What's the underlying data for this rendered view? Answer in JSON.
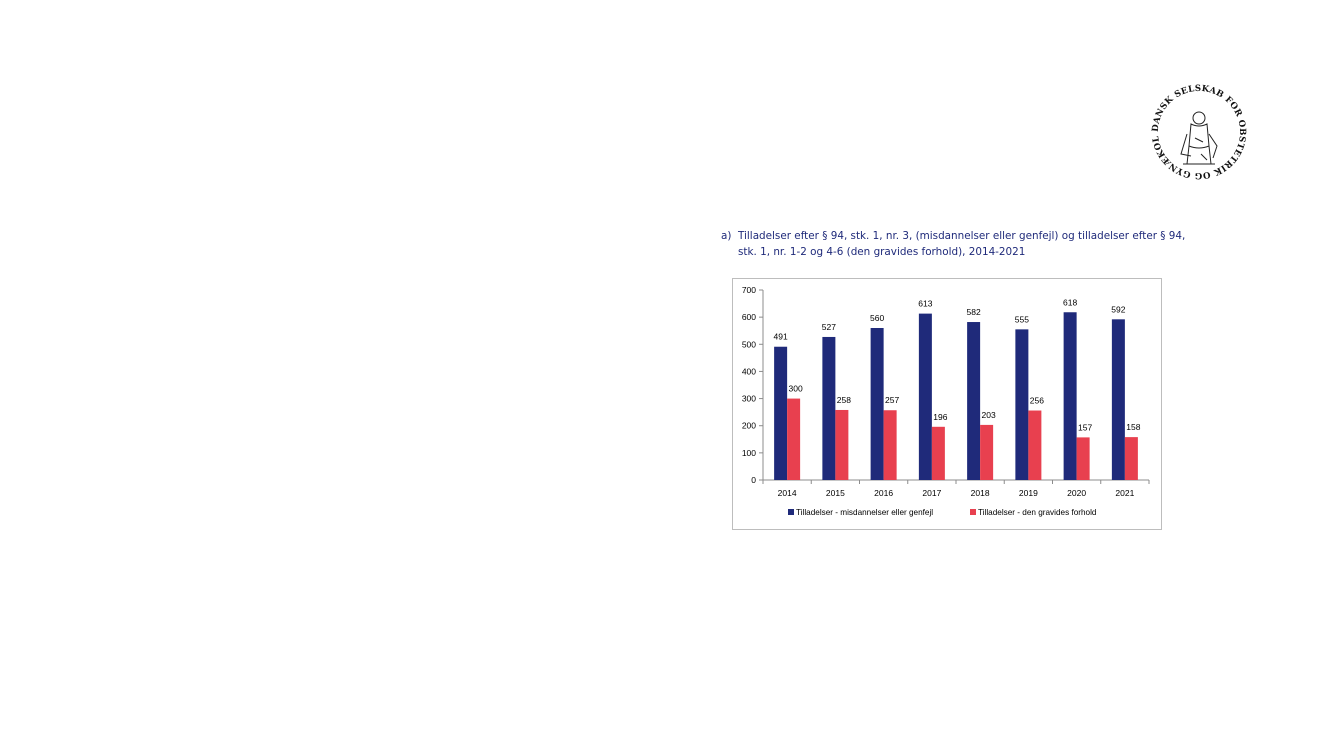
{
  "logo": {
    "ring_text": "DANSK SELSKAB FOR OBSTETRIK OG GYNÆKOLOGI 1898"
  },
  "caption": {
    "marker": "a)",
    "line1": "Tilladelser efter § 94, stk. 1, nr. 3, (misdannelser eller genfejl) og tilladelser efter § 94,",
    "line2": "stk. 1, nr. 1-2 og 4-6 (den gravides forhold), 2014-2021"
  },
  "chart_data": {
    "type": "bar",
    "categories": [
      "2014",
      "2015",
      "2016",
      "2017",
      "2018",
      "2019",
      "2020",
      "2021"
    ],
    "series": [
      {
        "name": "Tilladelser - misdannelser eller genfejl",
        "values": [
          491,
          527,
          560,
          613,
          582,
          555,
          618,
          592
        ],
        "color": "#1f2a7a"
      },
      {
        "name": "Tilladelser - den gravides forhold",
        "values": [
          300,
          258,
          257,
          196,
          203,
          256,
          157,
          158
        ],
        "color": "#e8404f"
      }
    ],
    "yticks": [
      "0",
      "100",
      "200",
      "300",
      "400",
      "500",
      "600",
      "700"
    ],
    "ylim": [
      0,
      700
    ],
    "grid": false,
    "legend": "bottom"
  }
}
